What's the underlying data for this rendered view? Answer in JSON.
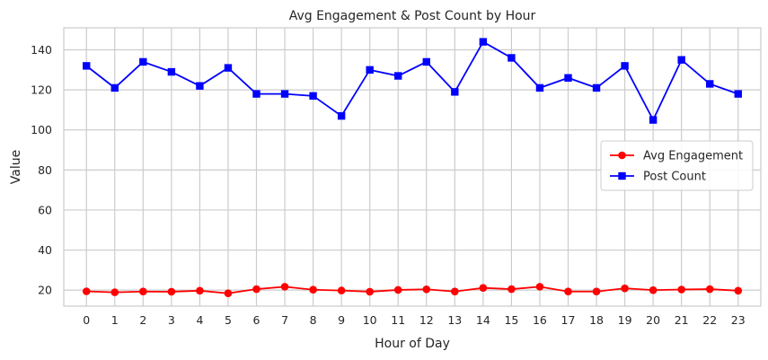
{
  "chart_data": {
    "type": "line",
    "title": "Avg Engagement & Post Count by Hour",
    "xlabel": "Hour of Day",
    "ylabel": "Value",
    "x": [
      0,
      1,
      2,
      3,
      4,
      5,
      6,
      7,
      8,
      9,
      10,
      11,
      12,
      13,
      14,
      15,
      16,
      17,
      18,
      19,
      20,
      21,
      22,
      23
    ],
    "x_tick_labels": [
      "0",
      "1",
      "2",
      "3",
      "4",
      "5",
      "6",
      "7",
      "8",
      "9",
      "10",
      "11",
      "12",
      "13",
      "14",
      "15",
      "16",
      "17",
      "18",
      "19",
      "20",
      "21",
      "22",
      "23"
    ],
    "y_ticks": [
      20,
      40,
      60,
      80,
      100,
      120,
      140
    ],
    "y_tick_labels": [
      "20",
      "40",
      "60",
      "80",
      "100",
      "120",
      "140"
    ],
    "ylim": [
      12,
      151
    ],
    "xlim": [
      -0.8,
      23.8
    ],
    "grid": true,
    "legend_position": "center-right",
    "series": [
      {
        "name": "Avg Engagement",
        "color": "#ff0000",
        "marker": "circle",
        "values": [
          19.4,
          18.9,
          19.3,
          19.2,
          19.7,
          18.4,
          20.5,
          21.7,
          20.2,
          19.8,
          19.2,
          20.1,
          20.4,
          19.3,
          21.1,
          20.5,
          21.7,
          19.3,
          19.3,
          20.9,
          20.0,
          20.3,
          20.5,
          19.7
        ]
      },
      {
        "name": "Post Count",
        "color": "#0000ff",
        "marker": "square",
        "values": [
          132,
          121,
          134,
          129,
          122,
          131,
          118,
          118,
          117,
          107,
          130,
          127,
          134,
          119,
          144,
          136,
          121,
          126,
          121,
          132,
          105,
          135,
          123,
          118
        ]
      }
    ]
  }
}
